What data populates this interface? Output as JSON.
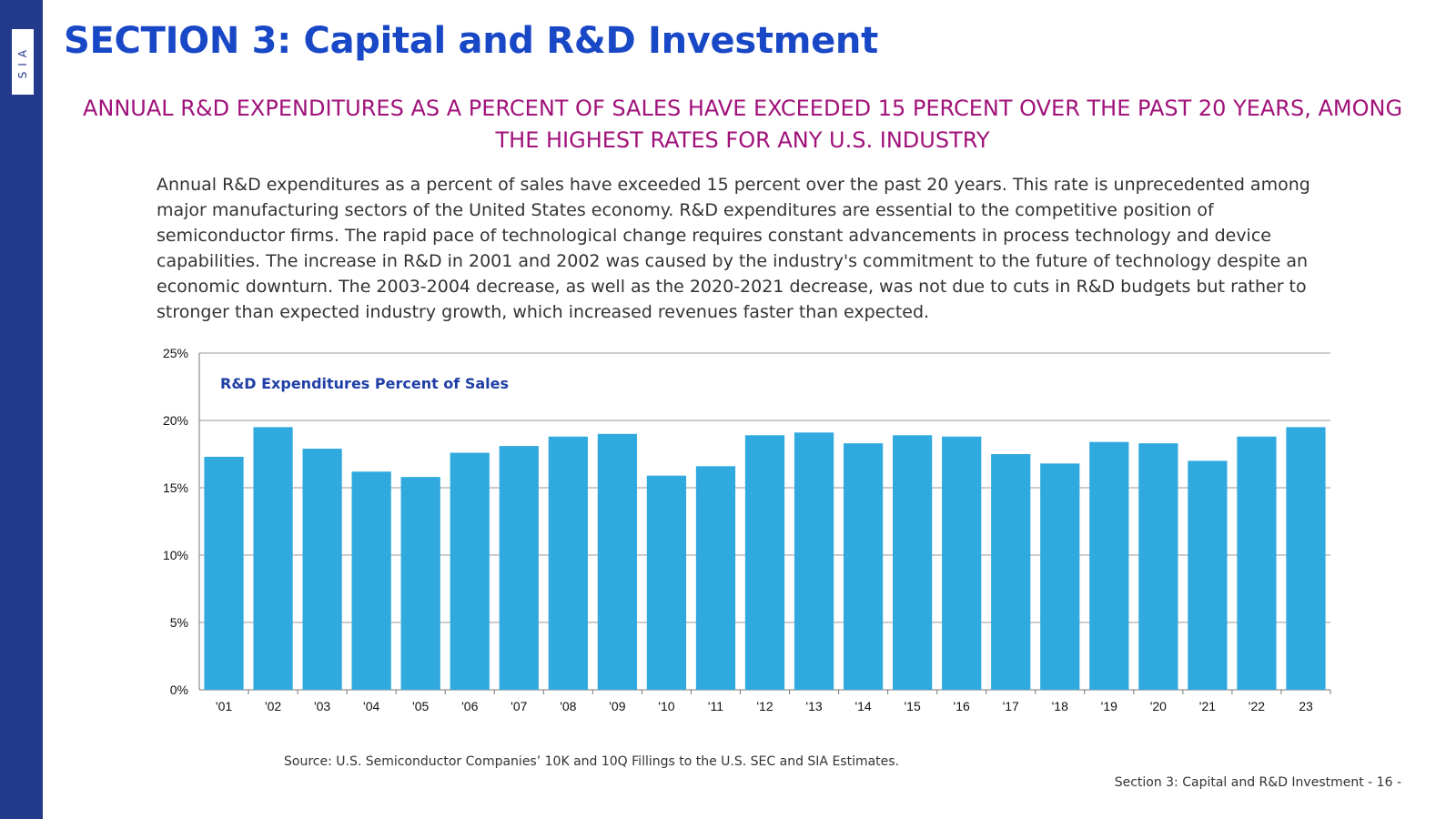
{
  "brand": {
    "logo_text": "SIA",
    "sidebar_color": "#233a8c"
  },
  "header": {
    "title": "SECTION 3: Capital and R&D Investment"
  },
  "subtitle": "ANNUAL R&D EXPENDITURES AS A PERCENT OF SALES HAVE EXCEEDED 15 PERCENT OVER THE PAST 20 YEARS, AMONG THE HIGHEST RATES FOR ANY U.S. INDUSTRY",
  "body_text": "Annual R&D expenditures as a percent of sales have exceeded 15 percent over the past 20 years. This rate is unprecedented among major manufacturing sectors of the United States economy. R&D expenditures are essential to the competitive position of semiconductor firms. The rapid pace of technological change requires constant advancements in process technology and device capabilities. The increase in R&D in 2001 and 2002 was caused by the industry's commitment to the future of technology despite an economic downturn. The 2003-2004 decrease, as well as the 2020-2021 decrease, was not due to cuts in R&D budgets but rather to stronger than expected industry growth, which increased revenues faster than expected.",
  "chart_data": {
    "type": "bar",
    "title": "R&D Expenditures Percent of Sales",
    "categories": [
      "'01",
      "'02",
      "'03",
      "'04",
      "'05",
      "'06",
      "'07",
      "'08",
      "'09",
      "'10",
      "'11",
      "'12",
      "'13",
      "'14",
      "'15",
      "'16",
      "'17",
      "'18",
      "'19",
      "'20",
      "'21",
      "'22",
      "23"
    ],
    "values": [
      17.3,
      19.5,
      17.9,
      16.2,
      15.8,
      17.6,
      18.1,
      18.8,
      19.0,
      15.9,
      16.6,
      18.9,
      19.1,
      18.3,
      18.9,
      18.8,
      17.5,
      16.8,
      18.4,
      18.3,
      17.0,
      18.8,
      19.5
    ],
    "ylim": [
      0,
      25
    ],
    "yticks": [
      0,
      5,
      10,
      15,
      20,
      25
    ],
    "ytick_labels": [
      "0%",
      "5%",
      "10%",
      "15%",
      "20%",
      "25%"
    ],
    "xlabel": "",
    "ylabel": "",
    "grid": true,
    "bar_color": "#30a9df",
    "title_color": "#1f3fa6"
  },
  "source": "Source: U.S. Semiconductor Companies’ 10K and 10Q Fillings to the U.S. SEC and SIA Estimates.",
  "footer": "Section 3: Capital and R&D Investment  - 16 -"
}
